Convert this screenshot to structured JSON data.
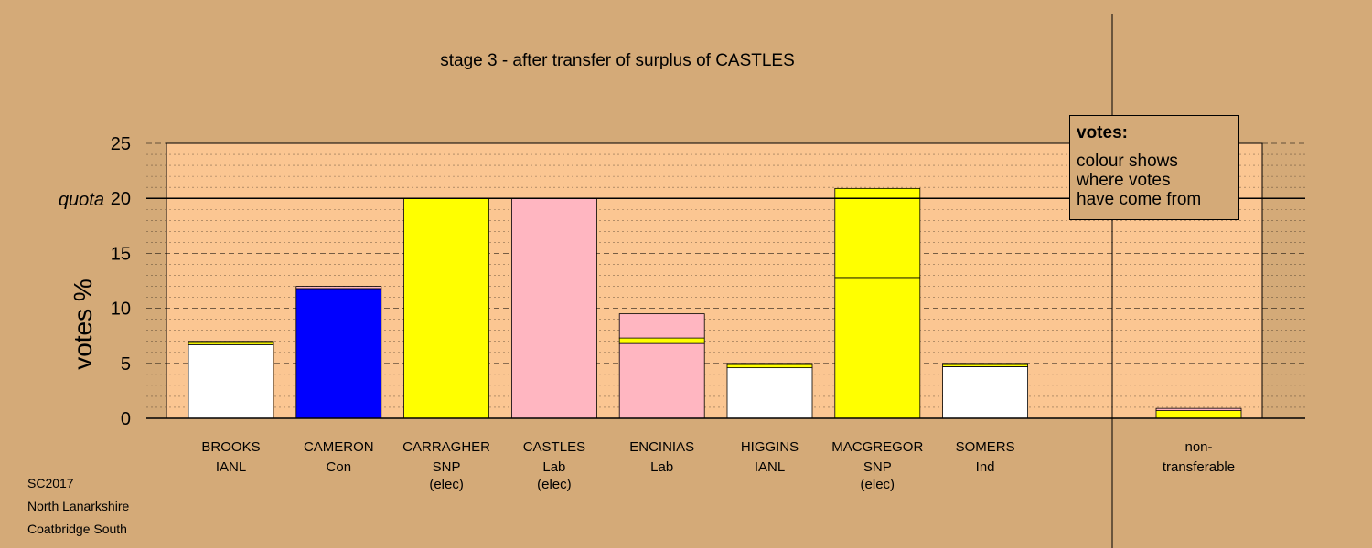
{
  "title": "stage 3 - after transfer of surplus of CASTLES",
  "info": {
    "election": "SC2017",
    "council": "North Lanarkshire",
    "ward": "Coatbridge South"
  },
  "legend": {
    "title": "votes:",
    "lines": [
      "colour shows",
      "where votes",
      "have come from"
    ]
  },
  "colors": {
    "background": "#d4aa78",
    "plot_area": "#fbc692",
    "IANL": "#ffffff",
    "Con": "#0000ff",
    "SNP": "#ffff00",
    "Lab": "#ffb6c1",
    "Ind": "#ffffff"
  },
  "chart_data": {
    "type": "bar",
    "stacked": true,
    "ylabel": "votes %",
    "ylim": [
      0,
      25
    ],
    "yticks": [
      0,
      5,
      10,
      15,
      20,
      25
    ],
    "quota": 20,
    "quota_label": "quota",
    "grid": "dashed major every 5, dotted minor every 1",
    "legend_placement": "top-right",
    "candidates": [
      {
        "name": "BROOKS",
        "party": "IANL",
        "status": "",
        "segments": [
          {
            "from": "IANL",
            "value": 6.7
          },
          {
            "from": "SNP",
            "value": 0.2
          },
          {
            "from": "Lab",
            "value": 0.1
          }
        ]
      },
      {
        "name": "CAMERON",
        "party": "Con",
        "status": "",
        "segments": [
          {
            "from": "Con",
            "value": 11.8
          },
          {
            "from": "Lab",
            "value": 0.2
          }
        ]
      },
      {
        "name": "CARRAGHER",
        "party": "SNP",
        "status": "(elec)",
        "segments": [
          {
            "from": "SNP",
            "value": 20.0
          }
        ]
      },
      {
        "name": "CASTLES",
        "party": "Lab",
        "status": "(elec)",
        "segments": [
          {
            "from": "Lab",
            "value": 20.0
          }
        ]
      },
      {
        "name": "ENCINIAS",
        "party": "Lab",
        "status": "",
        "segments": [
          {
            "from": "Lab",
            "value": 6.8
          },
          {
            "from": "SNP",
            "value": 0.5
          },
          {
            "from": "Lab",
            "value": 2.2
          }
        ]
      },
      {
        "name": "HIGGINS",
        "party": "IANL",
        "status": "",
        "segments": [
          {
            "from": "IANL",
            "value": 4.6
          },
          {
            "from": "SNP",
            "value": 0.3
          },
          {
            "from": "Lab",
            "value": 0.1
          }
        ]
      },
      {
        "name": "MACGREGOR",
        "party": "SNP",
        "status": "(elec)",
        "segments": [
          {
            "from": "SNP",
            "value": 12.8
          },
          {
            "from": "SNP",
            "value": 8.1
          }
        ]
      },
      {
        "name": "SOMERS",
        "party": "Ind",
        "status": "",
        "segments": [
          {
            "from": "Ind",
            "value": 4.7
          },
          {
            "from": "SNP",
            "value": 0.2
          },
          {
            "from": "Lab",
            "value": 0.1
          }
        ]
      }
    ],
    "nontransferable": {
      "label_line1": "non-",
      "label_line2": "transferable",
      "segments": [
        {
          "from": "SNP",
          "value": 0.7
        },
        {
          "from": "Lab",
          "value": 0.2
        }
      ]
    }
  }
}
